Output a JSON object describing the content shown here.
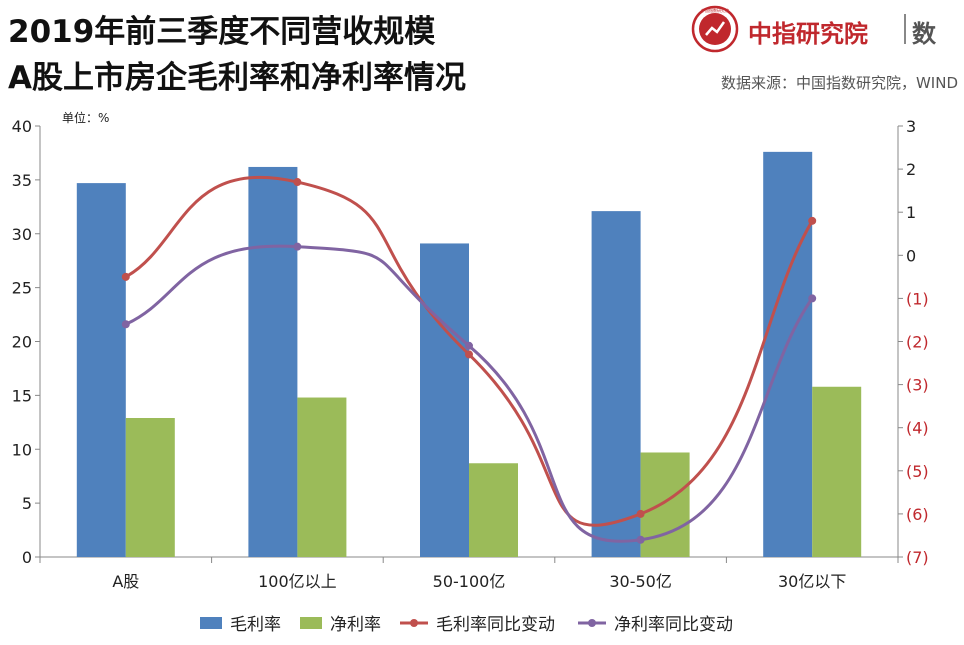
{
  "header": {
    "title_line1": "2019年前三季度不同营收规模",
    "title_line2": "A股上市房企毛利率和净利率情况",
    "brand_name": "中指研究院",
    "brand_suffix": "数",
    "brand_logo_text": "中国指数研究院",
    "source": "数据来源：中国指数研究院，WIND"
  },
  "colors": {
    "bar_gross": "#4f81bd",
    "bar_net": "#9bbb59",
    "line_gross": "#c0504d",
    "line_net": "#8064a2",
    "right_axis": "#c0282d",
    "brand": "#c0282d"
  },
  "chart_data": {
    "type": "bar+line",
    "unit_label": "单位：%",
    "categories": [
      "A股",
      "100亿以上",
      "50-100亿",
      "30-50亿",
      "30亿以下"
    ],
    "y_left": {
      "min": 0,
      "max": 40,
      "ticks": [
        0,
        5,
        10,
        15,
        20,
        25,
        30,
        35,
        40
      ],
      "tick_labels": [
        "0",
        "5",
        "10",
        "15",
        "20",
        "25",
        "30",
        "35",
        "40"
      ]
    },
    "y_right": {
      "min": -7,
      "max": 3,
      "ticks": [
        3,
        2,
        1,
        0,
        -1,
        -2,
        -3,
        -4,
        -5,
        -6,
        -7
      ],
      "tick_labels": [
        "3",
        "2",
        "1",
        "0",
        "(1)",
        "(2)",
        "(3)",
        "(4)",
        "(5)",
        "(6)",
        "(7)"
      ]
    },
    "bar_series": [
      {
        "name": "毛利率",
        "values": [
          34.7,
          36.2,
          29.1,
          32.1,
          37.6
        ]
      },
      {
        "name": "净利率",
        "values": [
          12.9,
          14.8,
          8.7,
          9.7,
          15.8
        ]
      }
    ],
    "line_series": [
      {
        "name": "毛利率同比变动",
        "values": [
          -0.5,
          1.7,
          -2.3,
          -6.0,
          0.8
        ]
      },
      {
        "name": "净利率同比变动",
        "values": [
          -1.6,
          0.2,
          -2.1,
          -6.6,
          -1.0
        ]
      }
    ],
    "legend": [
      "毛利率",
      "净利率",
      "毛利率同比变动",
      "净利率同比变动"
    ]
  }
}
